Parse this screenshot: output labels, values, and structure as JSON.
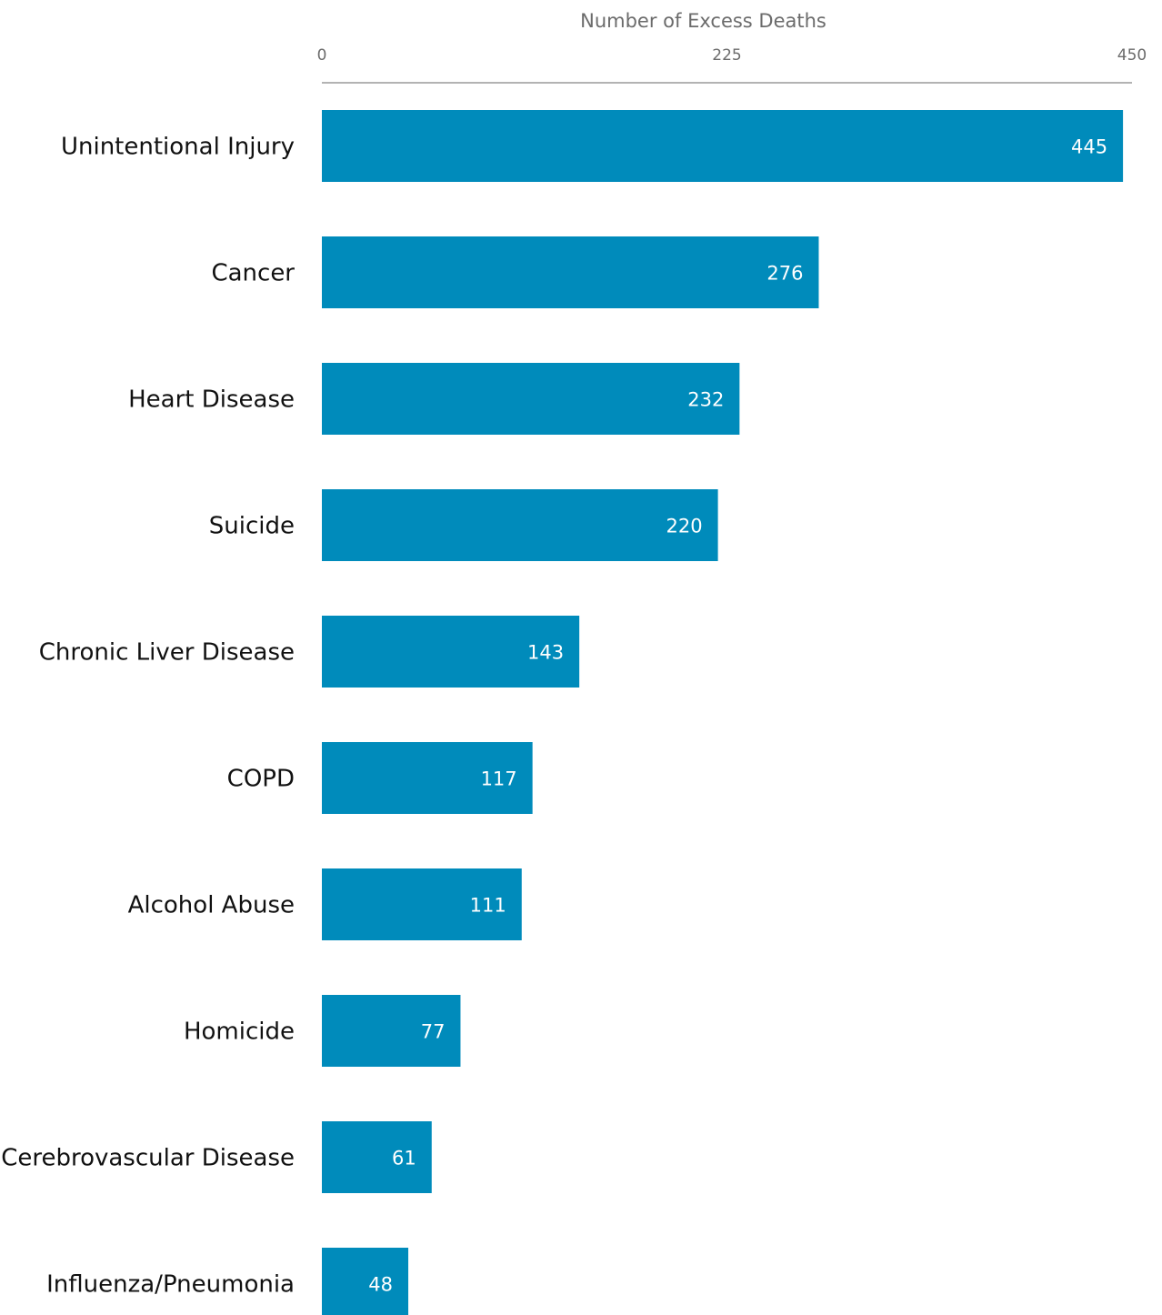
{
  "chart_data": {
    "type": "bar",
    "orientation": "horizontal",
    "title": "",
    "xlabel": "Number of Excess Deaths",
    "ylabel": "",
    "xlim": [
      0,
      450
    ],
    "x_ticks": [
      "0",
      "225",
      "450"
    ],
    "x_axis_position": "top",
    "grid": false,
    "categories": [
      "Unintentional Injury",
      "Cancer",
      "Heart Disease",
      "Suicide",
      "Chronic Liver Disease",
      "COPD",
      "Alcohol Abuse",
      "Homicide",
      "Cerebrovascular Disease",
      "Influenza/Pneumonia"
    ],
    "values": [
      445,
      276,
      232,
      220,
      143,
      117,
      111,
      77,
      61,
      48
    ],
    "value_labels": [
      "445",
      "276",
      "232",
      "220",
      "143",
      "117",
      "111",
      "77",
      "61",
      "48"
    ],
    "colors": {
      "bar": "#008bbb",
      "axis_line": "#9a9a9a",
      "axis_text": "#6b6b6b",
      "category_text": "#111111",
      "value_text": "#ffffff"
    }
  }
}
